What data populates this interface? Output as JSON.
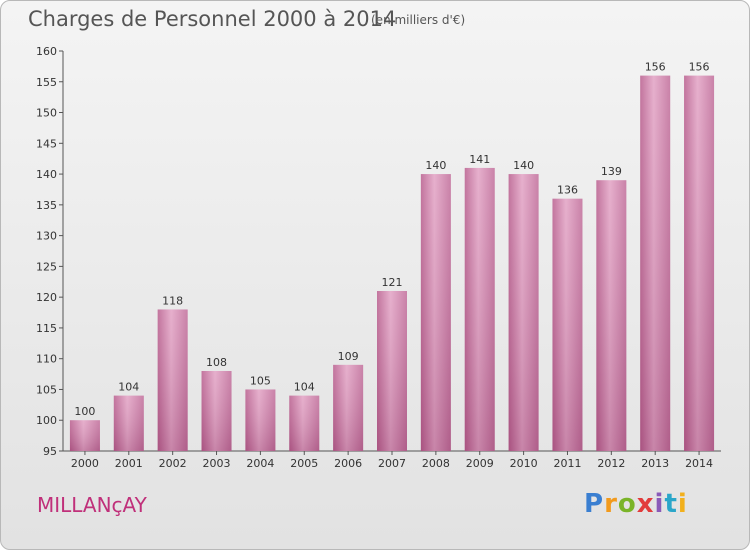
{
  "title": "Charges de Personnel 2000 à 2014",
  "subtitle": "(en milliers d'€)",
  "commune": "MILLANçAY",
  "logo": {
    "letters": [
      "P",
      "r",
      "o",
      "x",
      "i",
      "t",
      "i"
    ],
    "colors": [
      "#3a7fd1",
      "#f29a1c",
      "#7ab428",
      "#e23b3b",
      "#8a5ab8",
      "#2aa6c9",
      "#f2b01c"
    ]
  },
  "colors": {
    "bar": "#c9729f",
    "bar_light": "#e6a8c8",
    "accent": "#c0307a"
  },
  "chart_data": {
    "type": "bar",
    "title": "Charges de Personnel 2000 à 2014",
    "subtitle": "(en milliers d'€)",
    "categories": [
      "2000",
      "2001",
      "2002",
      "2003",
      "2004",
      "2005",
      "2006",
      "2007",
      "2008",
      "2009",
      "2010",
      "2011",
      "2012",
      "2013",
      "2014"
    ],
    "values": [
      100,
      104,
      118,
      108,
      105,
      104,
      109,
      121,
      140,
      141,
      140,
      136,
      139,
      156,
      156
    ],
    "xlabel": "",
    "ylabel": "",
    "ylim": [
      95,
      160
    ],
    "yticks": [
      95,
      100,
      105,
      110,
      115,
      120,
      125,
      130,
      135,
      140,
      145,
      150,
      155,
      160
    ],
    "grid": false,
    "legend": "none"
  }
}
